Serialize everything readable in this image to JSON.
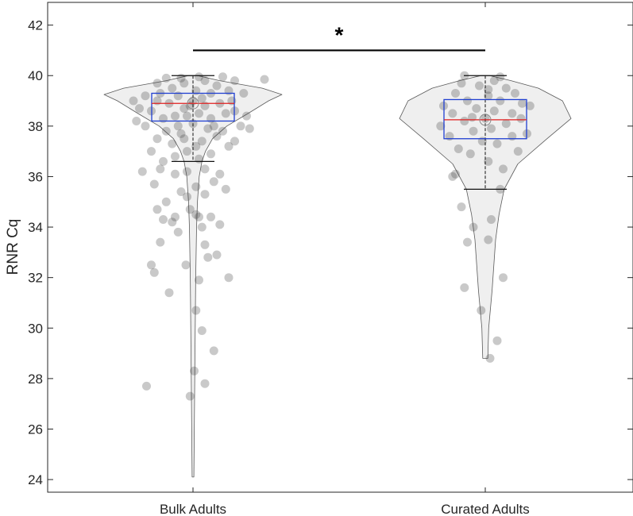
{
  "chart_data": {
    "type": "violin",
    "title": "",
    "xlabel": "",
    "ylabel": "RNR Cq",
    "ylim": [
      23.5,
      42.9
    ],
    "yticks": [
      24,
      26,
      28,
      30,
      32,
      34,
      36,
      38,
      40,
      42
    ],
    "categories": [
      "Bulk Adults",
      "Curated Adults"
    ],
    "significance": {
      "label": "*",
      "between": [
        "Bulk Adults",
        "Curated Adults"
      ],
      "y": 41.0
    },
    "groups": [
      {
        "name": "Bulk Adults",
        "box": {
          "q1": 38.2,
          "median": 38.9,
          "q3": 39.3
        },
        "whisker": {
          "low": 36.6,
          "high": 40.0
        },
        "density": [
          [
            24.1,
            0.01
          ],
          [
            28,
            0.02
          ],
          [
            32,
            0.03
          ],
          [
            34,
            0.04
          ],
          [
            35,
            0.05
          ],
          [
            36,
            0.07
          ],
          [
            36.6,
            0.1
          ],
          [
            37,
            0.14
          ],
          [
            37.5,
            0.22
          ],
          [
            38,
            0.38
          ],
          [
            38.5,
            0.62
          ],
          [
            39.0,
            0.85
          ],
          [
            39.25,
            1.0
          ],
          [
            39.5,
            0.78
          ],
          [
            39.8,
            0.3
          ],
          [
            40.0,
            0.05
          ]
        ],
        "points": [
          [
            -0.78,
            27.7
          ],
          [
            -0.05,
            27.3
          ],
          [
            0.02,
            28.3
          ],
          [
            0.2,
            27.8
          ],
          [
            0.35,
            29.1
          ],
          [
            0.15,
            29.9
          ],
          [
            0.05,
            30.7
          ],
          [
            -0.4,
            31.4
          ],
          [
            0.6,
            32.0
          ],
          [
            -0.65,
            32.2
          ],
          [
            -0.7,
            32.5
          ],
          [
            -0.12,
            32.5
          ],
          [
            0.1,
            31.9
          ],
          [
            0.25,
            32.8
          ],
          [
            0.4,
            32.9
          ],
          [
            -0.55,
            33.4
          ],
          [
            0.2,
            33.3
          ],
          [
            0.15,
            34.0
          ],
          [
            -0.25,
            33.8
          ],
          [
            -0.5,
            34.3
          ],
          [
            -0.6,
            34.7
          ],
          [
            -0.3,
            34.4
          ],
          [
            0.1,
            34.4
          ],
          [
            0.3,
            34.4
          ],
          [
            -0.05,
            34.7
          ],
          [
            0.05,
            34.5
          ],
          [
            -0.35,
            34.2
          ],
          [
            0.45,
            34.1
          ],
          [
            -0.45,
            35.0
          ],
          [
            -0.1,
            35.2
          ],
          [
            0.2,
            35.3
          ],
          [
            0.55,
            35.5
          ],
          [
            -0.2,
            35.4
          ],
          [
            0.05,
            35.6
          ],
          [
            0.35,
            35.8
          ],
          [
            -0.65,
            35.7
          ],
          [
            -0.85,
            36.2
          ],
          [
            -0.55,
            36.3
          ],
          [
            -0.3,
            36.1
          ],
          [
            -0.1,
            36.2
          ],
          [
            0.2,
            36.3
          ],
          [
            0.45,
            36.1
          ],
          [
            -0.5,
            36.6
          ],
          [
            -0.3,
            36.8
          ],
          [
            0.1,
            36.7
          ],
          [
            0.3,
            36.9
          ],
          [
            -0.7,
            37.0
          ],
          [
            0.6,
            37.2
          ],
          [
            -0.1,
            37.0
          ],
          [
            -0.35,
            37.3
          ],
          [
            -0.15,
            37.5
          ],
          [
            0.15,
            37.4
          ],
          [
            0.4,
            37.6
          ],
          [
            -0.6,
            37.5
          ],
          [
            0.7,
            37.4
          ],
          [
            0.05,
            37.2
          ],
          [
            -0.45,
            37.8
          ],
          [
            0.25,
            37.9
          ],
          [
            -0.2,
            37.7
          ],
          [
            0.5,
            37.8
          ],
          [
            -0.8,
            38.0
          ],
          [
            0.8,
            38.0
          ],
          [
            0.0,
            38.1
          ],
          [
            -0.5,
            38.3
          ],
          [
            -0.3,
            38.4
          ],
          [
            0.3,
            38.3
          ],
          [
            0.55,
            38.5
          ],
          [
            -0.7,
            38.6
          ],
          [
            0.7,
            38.6
          ],
          [
            0.1,
            38.5
          ],
          [
            -0.15,
            38.7
          ],
          [
            0.2,
            38.8
          ],
          [
            -0.4,
            38.9
          ],
          [
            0.45,
            38.9
          ],
          [
            -0.6,
            39.0
          ],
          [
            0.65,
            39.0
          ],
          [
            0.0,
            39.0
          ],
          [
            -0.25,
            39.2
          ],
          [
            0.3,
            39.3
          ],
          [
            -0.55,
            39.3
          ],
          [
            0.6,
            39.4
          ],
          [
            -0.8,
            39.2
          ],
          [
            0.85,
            39.3
          ],
          [
            0.05,
            39.4
          ],
          [
            -0.35,
            39.5
          ],
          [
            0.4,
            39.6
          ],
          [
            -0.15,
            39.7
          ],
          [
            0.2,
            39.8
          ],
          [
            -0.6,
            39.7
          ],
          [
            0.7,
            39.8
          ],
          [
            -0.45,
            39.9
          ],
          [
            0.5,
            39.95
          ],
          [
            0.1,
            39.95
          ],
          [
            -0.2,
            39.9
          ],
          [
            1.2,
            39.85
          ],
          [
            -0.9,
            38.7
          ],
          [
            0.9,
            38.4
          ],
          [
            -1.0,
            39.0
          ],
          [
            0.95,
            37.9
          ],
          [
            -0.95,
            38.2
          ],
          [
            -0.1,
            38.4
          ],
          [
            0.35,
            38.0
          ],
          [
            -0.25,
            38.0
          ],
          [
            0.15,
            39.1
          ],
          [
            -0.05,
            38.8
          ]
        ]
      },
      {
        "name": "Curated Adults",
        "box": {
          "q1": 37.5,
          "median": 38.25,
          "q3": 39.05
        },
        "whisker": {
          "low": 35.5,
          "high": 40.0
        },
        "density": [
          [
            28.8,
            0.03
          ],
          [
            30,
            0.04
          ],
          [
            31.5,
            0.08
          ],
          [
            32.5,
            0.1
          ],
          [
            33.5,
            0.12
          ],
          [
            34.5,
            0.16
          ],
          [
            35.5,
            0.22
          ],
          [
            36.5,
            0.38
          ],
          [
            37.5,
            0.72
          ],
          [
            38.3,
            1.0
          ],
          [
            39.0,
            0.9
          ],
          [
            39.5,
            0.62
          ],
          [
            39.8,
            0.3
          ],
          [
            40.0,
            0.05
          ]
        ],
        "points": [
          [
            0.08,
            28.8
          ],
          [
            0.2,
            29.5
          ],
          [
            -0.07,
            30.7
          ],
          [
            -0.35,
            31.6
          ],
          [
            0.3,
            32.0
          ],
          [
            -0.3,
            33.4
          ],
          [
            0.05,
            33.5
          ],
          [
            -0.2,
            34.0
          ],
          [
            0.1,
            34.3
          ],
          [
            -0.4,
            34.8
          ],
          [
            0.25,
            35.5
          ],
          [
            -0.55,
            36.0
          ],
          [
            -0.5,
            36.1
          ],
          [
            0.3,
            36.3
          ],
          [
            0.05,
            36.6
          ],
          [
            -0.25,
            36.9
          ],
          [
            0.55,
            37.0
          ],
          [
            -0.45,
            37.1
          ],
          [
            0.2,
            37.3
          ],
          [
            -0.05,
            37.4
          ],
          [
            0.45,
            37.6
          ],
          [
            -0.6,
            37.6
          ],
          [
            0.7,
            37.7
          ],
          [
            -0.2,
            37.8
          ],
          [
            0.1,
            37.9
          ],
          [
            -0.75,
            38.0
          ],
          [
            0.35,
            38.1
          ],
          [
            -0.35,
            38.2
          ],
          [
            0.6,
            38.3
          ],
          [
            0.0,
            38.3
          ],
          [
            -0.55,
            38.5
          ],
          [
            0.45,
            38.5
          ],
          [
            0.15,
            38.6
          ],
          [
            -0.15,
            38.7
          ],
          [
            0.75,
            38.8
          ],
          [
            -0.7,
            38.8
          ],
          [
            0.25,
            39.0
          ],
          [
            -0.3,
            39.0
          ],
          [
            0.05,
            39.2
          ],
          [
            0.5,
            39.3
          ],
          [
            -0.5,
            39.3
          ],
          [
            0.35,
            39.5
          ],
          [
            -0.1,
            39.6
          ],
          [
            0.15,
            39.8
          ],
          [
            -0.4,
            39.7
          ],
          [
            0.25,
            39.95
          ],
          [
            -0.35,
            40.0
          ],
          [
            0.05,
            39.45
          ],
          [
            -0.22,
            38.35
          ],
          [
            0.62,
            38.9
          ]
        ]
      }
    ]
  }
}
